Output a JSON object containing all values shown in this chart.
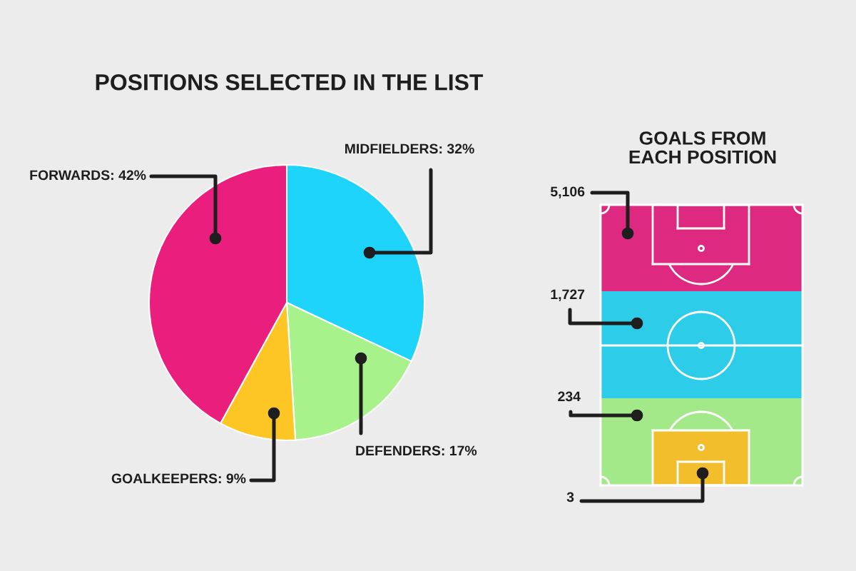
{
  "chart_data": [
    {
      "type": "pie",
      "title": "POSITIONS SELECTED IN THE LIST",
      "categories": [
        "MIDFIELDERS",
        "DEFENDERS",
        "GOALKEEPERS",
        "FORWARDS"
      ],
      "values": [
        32,
        17,
        9,
        42
      ],
      "colors": [
        "#1fd4fa",
        "#a8f28b",
        "#fdc625",
        "#e91e7d"
      ],
      "value_labels": [
        "32%",
        "17%",
        "9%",
        "42%"
      ]
    },
    {
      "type": "other",
      "title": "GOALS FROM EACH POSITION",
      "categories": [
        null,
        null,
        null,
        null
      ],
      "values": [
        5106,
        1727,
        234,
        3
      ],
      "colors": [
        "#dd2a80",
        "#2dcdea",
        "#a3e98a",
        "#f2be2c"
      ],
      "value_labels": [
        "5,106",
        "1,727",
        "234",
        "3"
      ]
    }
  ]
}
